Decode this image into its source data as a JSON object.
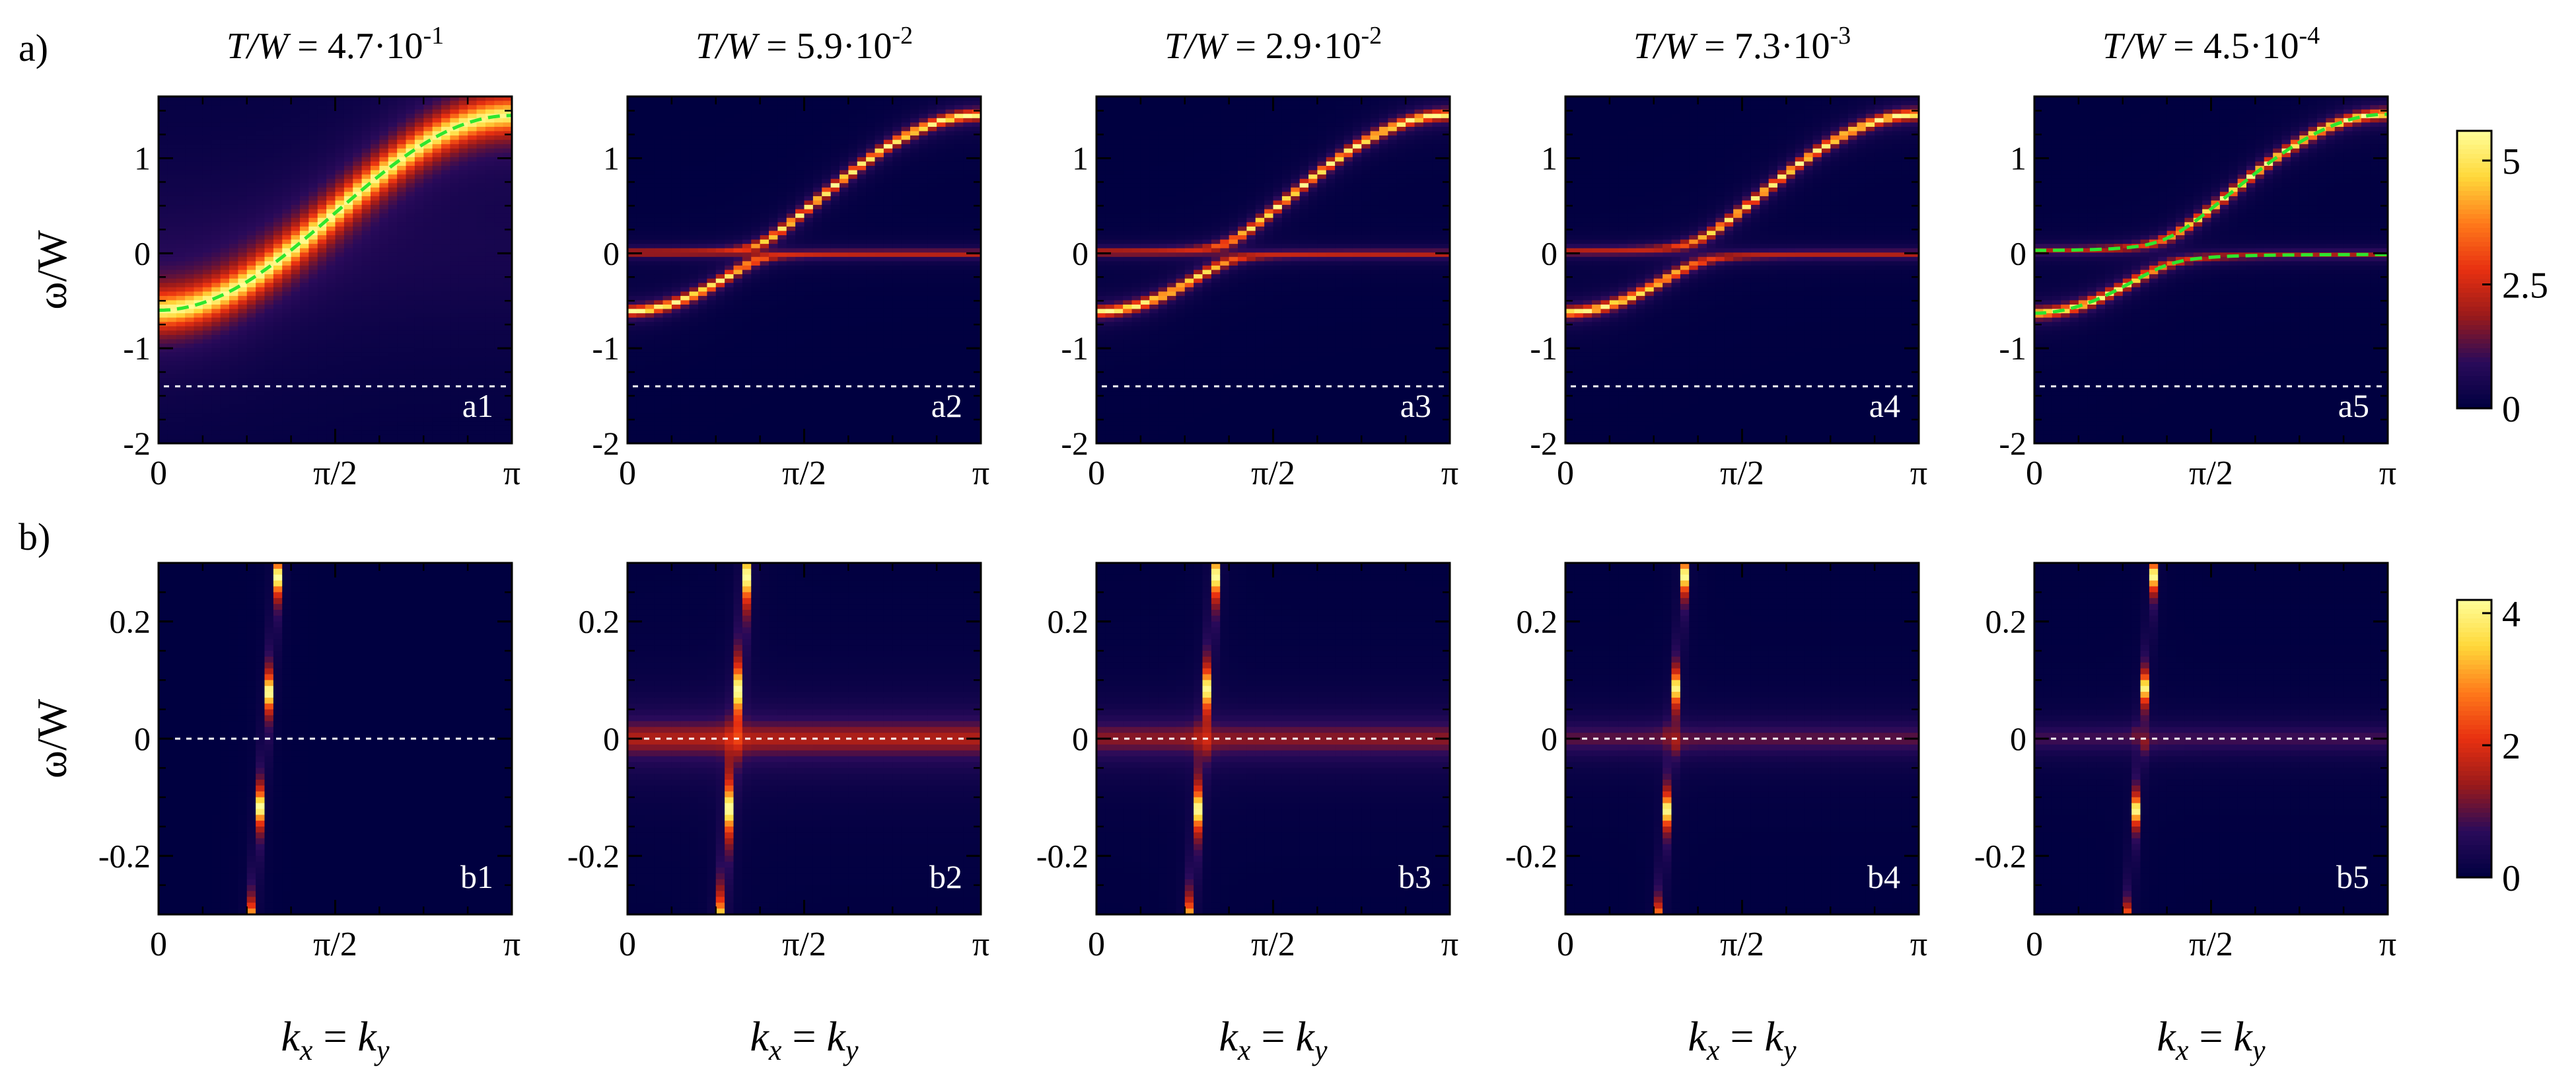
{
  "row_labels": [
    "a)",
    "b)"
  ],
  "column_titles": [
    {
      "prefix": "T/W",
      "eq": " = ",
      "mant": "4.7·10",
      "exp": "-1"
    },
    {
      "prefix": "T/W",
      "eq": " = ",
      "mant": "5.9·10",
      "exp": "-2"
    },
    {
      "prefix": "T/W",
      "eq": " = ",
      "mant": "2.9·10",
      "exp": "-2"
    },
    {
      "prefix": "T/W",
      "eq": " = ",
      "mant": "7.3·10",
      "exp": "-3"
    },
    {
      "prefix": "T/W",
      "eq": " = ",
      "mant": "4.5·10",
      "exp": "-4"
    }
  ],
  "ylabel": "ω/W",
  "xlabel": {
    "k": "k",
    "sub1": "x",
    "mid": " = ",
    "sub2": "y"
  },
  "colors": {
    "frame": "#000000",
    "guide": "#ffffff",
    "fit": "#2ee62e",
    "colormap": [
      "#000040",
      "#2a0a5a",
      "#9a1a1a",
      "#e83010",
      "#ff7a1a",
      "#ffd83a",
      "#ffff9a"
    ]
  },
  "chart_data": [
    {
      "type": "heatmap",
      "row": "a",
      "panels": [
        {
          "label": "a1",
          "gap": 0.0,
          "inc": 0.0,
          "fit": true,
          "fit_kind": "single"
        },
        {
          "label": "a2",
          "gap": 0.08,
          "inc": 0.12,
          "fit": false
        },
        {
          "label": "a3",
          "gap": 0.1,
          "inc": 0.1,
          "fit": false
        },
        {
          "label": "a4",
          "gap": 0.12,
          "inc": 0.05,
          "fit": false
        },
        {
          "label": "a5",
          "gap": 0.14,
          "inc": 0.0,
          "fit": true,
          "fit_kind": "split"
        }
      ],
      "dispersion": {
        "min": -0.6,
        "max": 1.45
      },
      "x_ticks": [
        "0",
        "π/2",
        "π"
      ],
      "y_ticks": [
        "1",
        "0",
        "-1",
        "-2"
      ],
      "y_tick_values": [
        1,
        0,
        -1,
        -2
      ],
      "ylim": [
        -2,
        1.65
      ],
      "guide_line": -1.4,
      "colorbar": {
        "ticks": [
          "5",
          "2.5",
          "0"
        ],
        "tick_values": [
          5,
          2.5,
          0
        ],
        "range": [
          0,
          5.6
        ]
      }
    },
    {
      "type": "heatmap",
      "row": "b",
      "panels": [
        {
          "label": "b1",
          "gap": 0.0,
          "inc": 0.0
        },
        {
          "label": "b2",
          "gap": 0.018,
          "inc": 0.5
        },
        {
          "label": "b3",
          "gap": 0.022,
          "inc": 0.3
        },
        {
          "label": "b4",
          "gap": 0.025,
          "inc": 0.1
        },
        {
          "label": "b5",
          "gap": 0.025,
          "inc": 0.0
        }
      ],
      "x_ticks": [
        "0",
        "π/2",
        "π"
      ],
      "y_ticks": [
        "0.2",
        "0",
        "-0.2"
      ],
      "y_tick_values": [
        0.2,
        0,
        -0.2
      ],
      "ylim": [
        -0.3,
        0.3
      ],
      "guide_line": 0,
      "colorbar": {
        "ticks": [
          "4",
          "2",
          "0"
        ],
        "tick_values": [
          4,
          2,
          0
        ],
        "range": [
          0,
          4.2
        ]
      }
    }
  ]
}
